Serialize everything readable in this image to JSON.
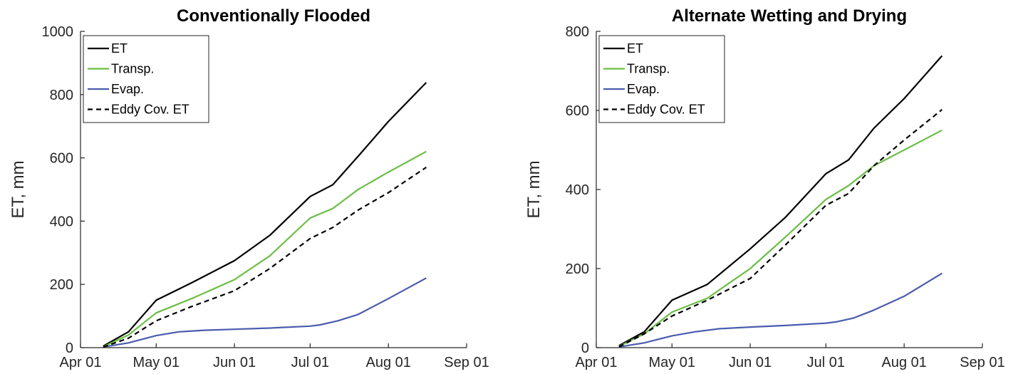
{
  "chart_data": [
    {
      "type": "line",
      "title": "Conventionally Flooded",
      "ylabel": "ET, mm",
      "xlabel": "",
      "ylim": [
        0,
        1000
      ],
      "yticks": [
        0,
        200,
        400,
        600,
        800,
        1000
      ],
      "x_domain": [
        "2019-04-01",
        "2019-09-01"
      ],
      "xticks": [
        {
          "date": "2019-04-01",
          "label": "Apr 01"
        },
        {
          "date": "2019-05-01",
          "label": "May 01"
        },
        {
          "date": "2019-06-01",
          "label": "Jun 01"
        },
        {
          "date": "2019-07-01",
          "label": "Jul 01"
        },
        {
          "date": "2019-08-01",
          "label": "Aug 01"
        },
        {
          "date": "2019-09-01",
          "label": "Sep 01"
        }
      ],
      "legend_position": "top-left",
      "series": [
        {
          "name": "ET",
          "color": "#000000",
          "dash": "solid",
          "points": [
            [
              "2019-04-10",
              5
            ],
            [
              "2019-04-20",
              50
            ],
            [
              "2019-05-01",
              150
            ],
            [
              "2019-05-15",
              205
            ],
            [
              "2019-06-01",
              275
            ],
            [
              "2019-06-15",
              355
            ],
            [
              "2019-07-01",
              478
            ],
            [
              "2019-07-10",
              515
            ],
            [
              "2019-07-20",
              605
            ],
            [
              "2019-08-01",
              715
            ],
            [
              "2019-08-16",
              838
            ]
          ]
        },
        {
          "name": "Transp.",
          "color": "#6cbd45",
          "dash": "solid",
          "points": [
            [
              "2019-04-10",
              3
            ],
            [
              "2019-04-20",
              40
            ],
            [
              "2019-05-01",
              110
            ],
            [
              "2019-05-15",
              155
            ],
            [
              "2019-06-01",
              215
            ],
            [
              "2019-06-15",
              290
            ],
            [
              "2019-07-01",
              410
            ],
            [
              "2019-07-10",
              440
            ],
            [
              "2019-07-20",
              500
            ],
            [
              "2019-08-01",
              555
            ],
            [
              "2019-08-16",
              620
            ]
          ]
        },
        {
          "name": "Evap.",
          "color": "#4a5cae",
          "dash": "solid",
          "points": [
            [
              "2019-04-10",
              2
            ],
            [
              "2019-04-20",
              15
            ],
            [
              "2019-05-01",
              38
            ],
            [
              "2019-05-10",
              50
            ],
            [
              "2019-05-20",
              55
            ],
            [
              "2019-06-01",
              58
            ],
            [
              "2019-06-15",
              62
            ],
            [
              "2019-07-01",
              68
            ],
            [
              "2019-07-05",
              72
            ],
            [
              "2019-07-12",
              85
            ],
            [
              "2019-07-20",
              105
            ],
            [
              "2019-08-01",
              155
            ],
            [
              "2019-08-16",
              220
            ]
          ]
        },
        {
          "name": "Eddy Cov. ET",
          "color": "#000000",
          "dash": "dashed",
          "points": [
            [
              "2019-04-10",
              2
            ],
            [
              "2019-04-20",
              30
            ],
            [
              "2019-05-01",
              85
            ],
            [
              "2019-05-15",
              130
            ],
            [
              "2019-06-01",
              180
            ],
            [
              "2019-06-15",
              250
            ],
            [
              "2019-07-01",
              345
            ],
            [
              "2019-07-10",
              380
            ],
            [
              "2019-07-20",
              435
            ],
            [
              "2019-08-01",
              490
            ],
            [
              "2019-08-16",
              570
            ]
          ]
        }
      ]
    },
    {
      "type": "line",
      "title": "Alternate Wetting and Drying",
      "ylabel": "ET, mm",
      "xlabel": "",
      "ylim": [
        0,
        800
      ],
      "yticks": [
        0,
        200,
        400,
        600,
        800
      ],
      "x_domain": [
        "2019-04-01",
        "2019-09-01"
      ],
      "xticks": [
        {
          "date": "2019-04-01",
          "label": "Apr 01"
        },
        {
          "date": "2019-05-01",
          "label": "May 01"
        },
        {
          "date": "2019-06-01",
          "label": "Jun 01"
        },
        {
          "date": "2019-07-01",
          "label": "Jul 01"
        },
        {
          "date": "2019-08-01",
          "label": "Aug 01"
        },
        {
          "date": "2019-09-01",
          "label": "Sep 01"
        }
      ],
      "legend_position": "top-left",
      "series": [
        {
          "name": "ET",
          "color": "#000000",
          "dash": "solid",
          "points": [
            [
              "2019-04-10",
              5
            ],
            [
              "2019-04-20",
              40
            ],
            [
              "2019-05-01",
              120
            ],
            [
              "2019-05-15",
              160
            ],
            [
              "2019-06-01",
              250
            ],
            [
              "2019-06-15",
              330
            ],
            [
              "2019-07-01",
              440
            ],
            [
              "2019-07-10",
              475
            ],
            [
              "2019-07-20",
              555
            ],
            [
              "2019-08-01",
              630
            ],
            [
              "2019-08-16",
              738
            ]
          ]
        },
        {
          "name": "Transp.",
          "color": "#6cbd45",
          "dash": "solid",
          "points": [
            [
              "2019-04-10",
              3
            ],
            [
              "2019-04-20",
              35
            ],
            [
              "2019-05-01",
              90
            ],
            [
              "2019-05-15",
              125
            ],
            [
              "2019-06-01",
              200
            ],
            [
              "2019-06-15",
              280
            ],
            [
              "2019-07-01",
              375
            ],
            [
              "2019-07-10",
              410
            ],
            [
              "2019-07-20",
              460
            ],
            [
              "2019-08-01",
              500
            ],
            [
              "2019-08-16",
              550
            ]
          ]
        },
        {
          "name": "Evap.",
          "color": "#4a5cae",
          "dash": "solid",
          "points": [
            [
              "2019-04-10",
              2
            ],
            [
              "2019-04-20",
              12
            ],
            [
              "2019-05-01",
              30
            ],
            [
              "2019-05-10",
              40
            ],
            [
              "2019-05-20",
              48
            ],
            [
              "2019-06-01",
              52
            ],
            [
              "2019-06-15",
              56
            ],
            [
              "2019-07-01",
              62
            ],
            [
              "2019-07-05",
              65
            ],
            [
              "2019-07-12",
              75
            ],
            [
              "2019-07-20",
              95
            ],
            [
              "2019-08-01",
              130
            ],
            [
              "2019-08-16",
              188
            ]
          ]
        },
        {
          "name": "Eddy Cov. ET",
          "color": "#000000",
          "dash": "dashed",
          "points": [
            [
              "2019-04-10",
              2
            ],
            [
              "2019-04-20",
              35
            ],
            [
              "2019-05-01",
              80
            ],
            [
              "2019-05-15",
              120
            ],
            [
              "2019-06-01",
              175
            ],
            [
              "2019-06-15",
              260
            ],
            [
              "2019-07-01",
              360
            ],
            [
              "2019-07-10",
              390
            ],
            [
              "2019-07-20",
              460
            ],
            [
              "2019-08-01",
              525
            ],
            [
              "2019-08-16",
              602
            ]
          ]
        }
      ]
    }
  ]
}
